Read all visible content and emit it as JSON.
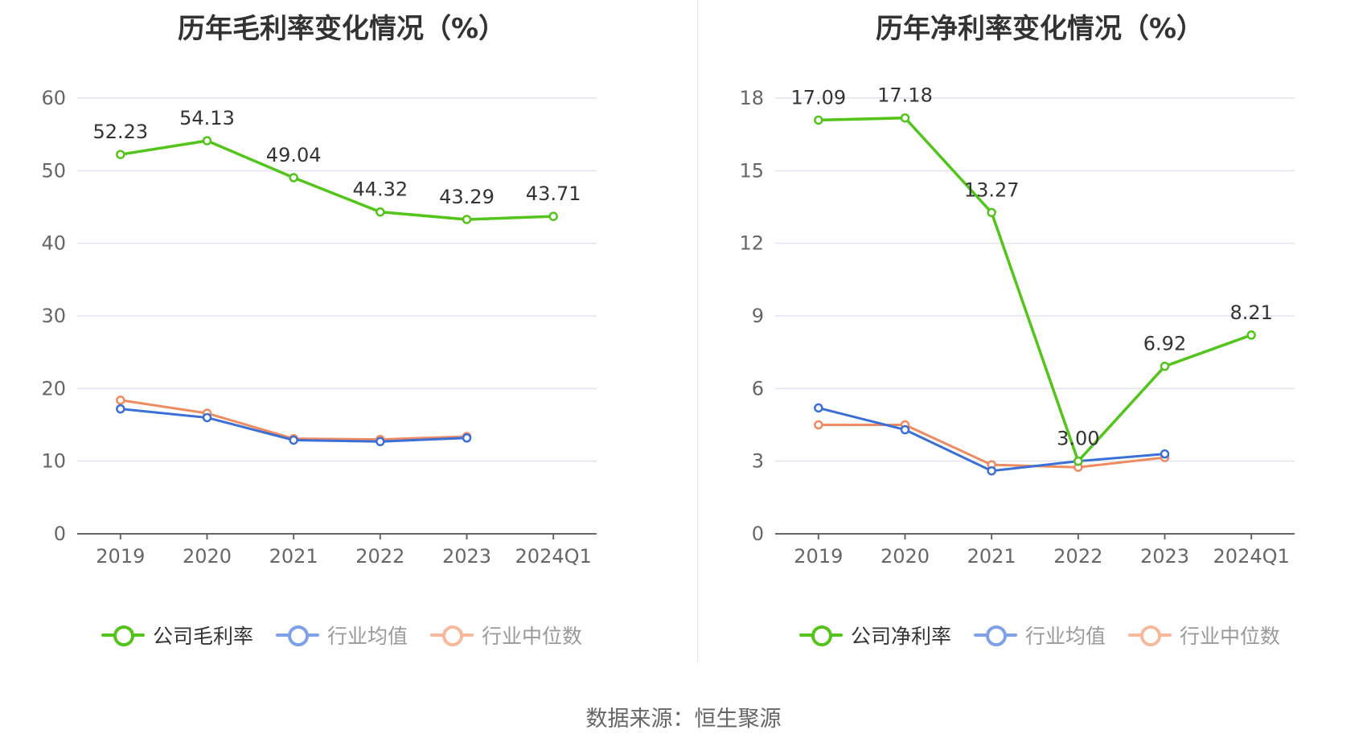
{
  "chart_data": [
    {
      "type": "line",
      "title": "历年毛利率变化情况（%）",
      "categories": [
        "2019",
        "2020",
        "2021",
        "2022",
        "2023",
        "2024Q1"
      ],
      "ylim": [
        0,
        60
      ],
      "yticks": [
        "0",
        "10",
        "20",
        "30",
        "40",
        "50",
        "60"
      ],
      "grid": true,
      "legend_position": "bottom",
      "series": [
        {
          "name": "公司毛利率",
          "color": "#52c41a",
          "values": [
            52.23,
            54.13,
            49.04,
            44.32,
            43.29,
            43.71
          ],
          "labels": [
            "52.23",
            "54.13",
            "49.04",
            "44.32",
            "43.29",
            "43.71"
          ]
        },
        {
          "name": "行业均值",
          "color": "#3b6fd8",
          "legend_color": "#7ea0e8",
          "values": [
            17.2,
            16.0,
            12.9,
            12.7,
            13.2,
            null
          ]
        },
        {
          "name": "行业中位数",
          "color": "#f08a60",
          "legend_color": "#f8b89c",
          "values": [
            18.4,
            16.6,
            13.1,
            13.0,
            13.4,
            null
          ]
        }
      ]
    },
    {
      "type": "line",
      "title": "历年净利率变化情况（%）",
      "categories": [
        "2019",
        "2020",
        "2021",
        "2022",
        "2023",
        "2024Q1"
      ],
      "ylim": [
        0,
        18
      ],
      "yticks": [
        "0",
        "3",
        "6",
        "9",
        "12",
        "15",
        "18"
      ],
      "grid": true,
      "legend_position": "bottom",
      "series": [
        {
          "name": "公司净利率",
          "color": "#52c41a",
          "values": [
            17.09,
            17.18,
            13.27,
            3.0,
            6.92,
            8.21
          ],
          "labels": [
            "17.09",
            "17.18",
            "13.27",
            "3.00",
            "6.92",
            "8.21"
          ]
        },
        {
          "name": "行业均值",
          "color": "#3b6fd8",
          "legend_color": "#7ea0e8",
          "values": [
            5.2,
            4.3,
            2.6,
            3.0,
            3.3,
            null
          ]
        },
        {
          "name": "行业中位数",
          "color": "#f08a60",
          "legend_color": "#f8b89c",
          "values": [
            4.5,
            4.5,
            2.85,
            2.75,
            3.15,
            null
          ]
        }
      ]
    }
  ],
  "source": "数据来源：恒生聚源"
}
